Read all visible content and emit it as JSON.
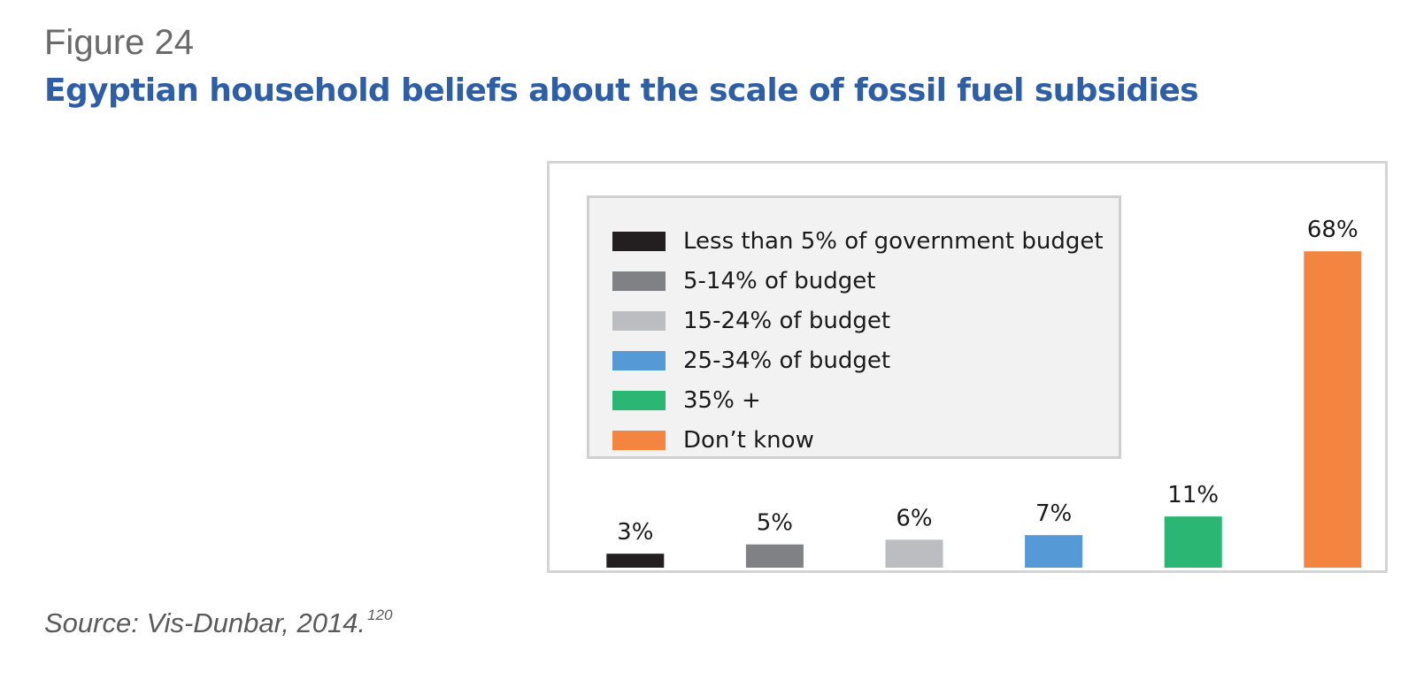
{
  "figure": {
    "label": "Figure 24",
    "title": "Egyptian household beliefs about the scale of fossil fuel subsidies"
  },
  "source": {
    "text": "Source: Vis-Dunbar, 2014.",
    "footnote": "120"
  },
  "legend": {
    "placement": "top-left inside plot",
    "items": [
      {
        "label": "Less than 5% of government budget",
        "color": "#231f20"
      },
      {
        "label": "5-14% of budget",
        "color": "#808185"
      },
      {
        "label": "15-24% of budget",
        "color": "#bcbdc0"
      },
      {
        "label": "25-34% of budget",
        "color": "#5599d6"
      },
      {
        "label": "35% +",
        "color": "#2bb673"
      },
      {
        "label": "Don’t know",
        "color": "#f48540"
      }
    ]
  },
  "chart_data": {
    "type": "bar",
    "title": "Egyptian household beliefs about the scale of fossil fuel subsidies",
    "xlabel": "",
    "ylabel": "",
    "ylim": [
      0,
      84
    ],
    "grid": false,
    "categories": [
      "Less than 5% of government budget",
      "5-14% of budget",
      "15-24% of budget",
      "25-34% of budget",
      "35% +",
      "Don’t know"
    ],
    "values": [
      3,
      5,
      6,
      7,
      11,
      68
    ],
    "data_labels": [
      "3%",
      "5%",
      "6%",
      "7%",
      "11%",
      "68%"
    ],
    "colors": [
      "#231f20",
      "#808185",
      "#bcbdc0",
      "#5599d6",
      "#2bb673",
      "#f48540"
    ],
    "unit": "%"
  }
}
